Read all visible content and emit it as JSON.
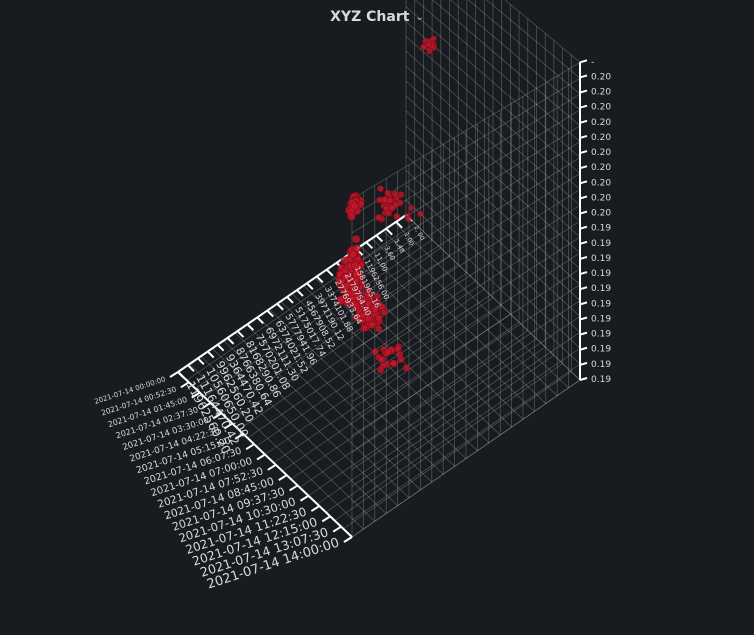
{
  "panel": {
    "title": "XYZ Chart",
    "chevron_icon": "chevron-down-icon"
  },
  "chart_data": {
    "type": "scatter",
    "title": "XYZ Chart",
    "projection": "3d",
    "point_color": "#c4162a",
    "background": "#181b1f",
    "grid": true,
    "axes": {
      "x": {
        "kind": "time",
        "tick_labels": [
          "2021-07-14 00:00:00",
          "2021-07-14 00:52:30",
          "2021-07-14 01:45:00",
          "2021-07-14 02:37:30",
          "2021-07-14 03:30:00",
          "2021-07-14 04:22:30",
          "2021-07-14 05:15:00",
          "2021-07-14 06:07:30",
          "2021-07-14 07:00:00",
          "2021-07-14 07:52:30",
          "2021-07-14 08:45:00",
          "2021-07-14 09:37:30",
          "2021-07-14 10:30:00",
          "2021-07-14 11:22:30",
          "2021-07-14 12:15:00",
          "2021-07-14 13:07:30",
          "2021-07-14 14:00:00"
        ]
      },
      "y": {
        "kind": "numeric",
        "tick_labels": [
          "2, 00",
          "1,00",
          "1,48",
          "3,60",
          "11,00",
          "1196256 00",
          "1581965.16",
          "2179754.40",
          "2776933.64",
          "3374101.88",
          "3971190.12",
          "4567908.52",
          "5175017.74",
          "5777941.96",
          "6374021.52",
          "6972111.30",
          "7570201.08",
          "8168290.86",
          "8766380.64",
          "9364470.42",
          "9962560.20",
          "10560650.00",
          "11164470.42",
          "11962560.20"
        ]
      },
      "z": {
        "kind": "numeric",
        "tick_labels": [
          "0.19",
          "0.19",
          "0.19",
          "0.19",
          "0.19",
          "0.19",
          "0.19",
          "0.19",
          "0.19",
          "0.19",
          "0.19",
          "0.20",
          "0.20",
          "0.20",
          "0.20",
          "0.20",
          "0.20",
          "0.20",
          "0.20",
          "0.20",
          "0.20",
          "-"
        ]
      }
    },
    "clusters": [
      {
        "t": 0.96,
        "y": 0.04,
        "z": 0.95,
        "n": 50,
        "spread": 0.025
      },
      {
        "t": 0.2,
        "y": 0.95,
        "z": 0.7,
        "n": 12,
        "spread": 0.03
      },
      {
        "t": 0.4,
        "y": 0.55,
        "z": 0.12,
        "n": 40,
        "spread": 0.05
      },
      {
        "t": 0.48,
        "y": 0.46,
        "z": 0.22,
        "n": 70,
        "spread": 0.06
      },
      {
        "t": 0.6,
        "y": 0.3,
        "z": 0.4,
        "n": 55,
        "spread": 0.05
      },
      {
        "t": 0.72,
        "y": 0.2,
        "z": 0.55,
        "n": 60,
        "spread": 0.05
      },
      {
        "t": 0.85,
        "y": 0.12,
        "z": 0.7,
        "n": 30,
        "spread": 0.05
      },
      {
        "t": 0.3,
        "y": 0.7,
        "z": 0.35,
        "n": 25,
        "spread": 0.06
      },
      {
        "t": 0.5,
        "y": 0.55,
        "z": 0.05,
        "n": 20,
        "spread": 0.07
      },
      {
        "t": 0.1,
        "y": 0.95,
        "z": 0.05,
        "n": 4,
        "spread": 0.08
      }
    ]
  }
}
